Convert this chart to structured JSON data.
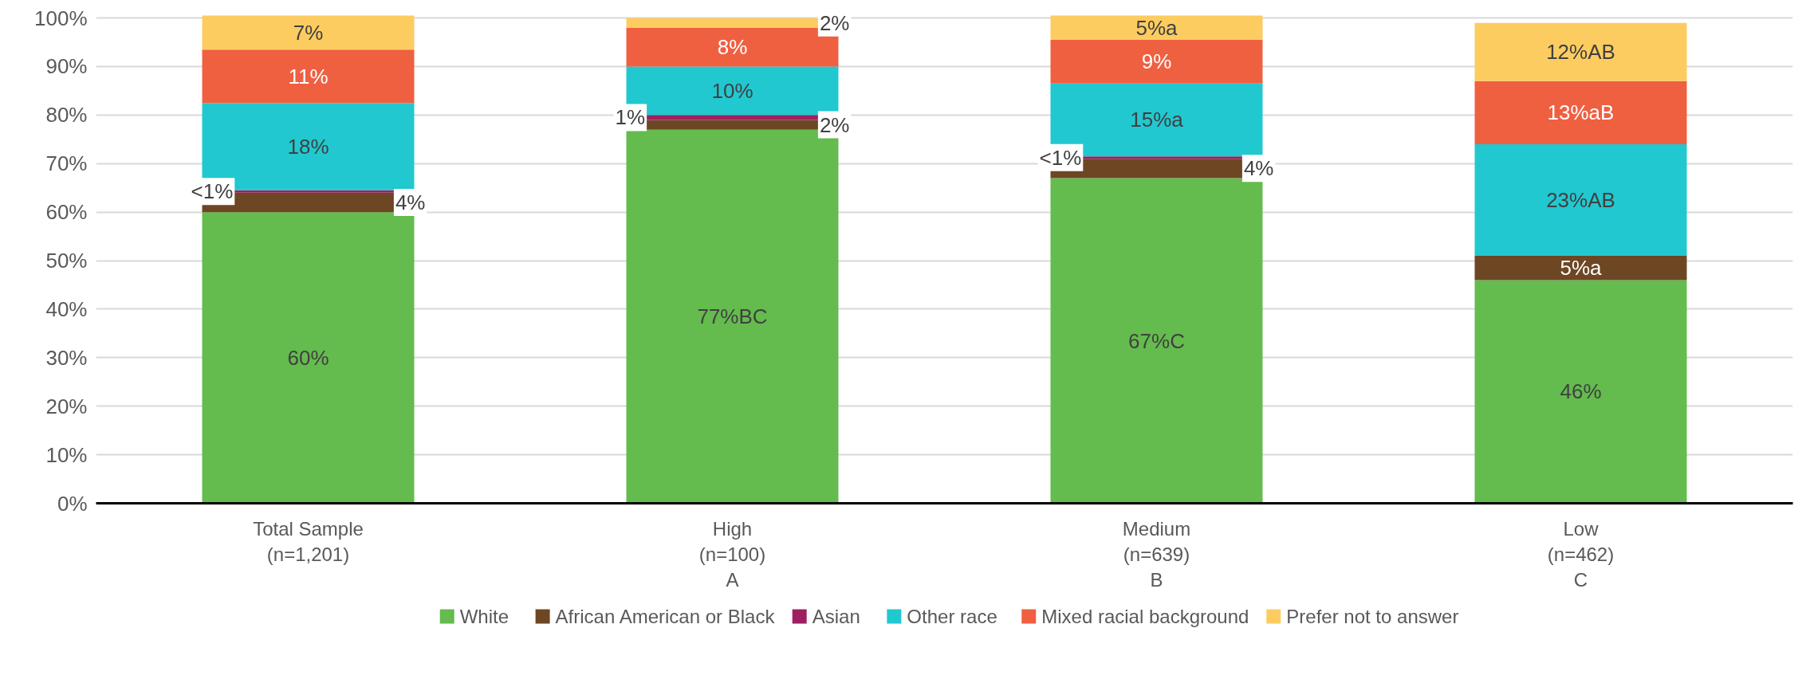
{
  "chart_data": {
    "type": "bar",
    "stacked": true,
    "categories": [
      "Total Sample\n(n=1,201)",
      "High\n(n=100)\nA",
      "Medium\n(n=639)\nB",
      "Low\n(n=462)\nC"
    ],
    "ylim": [
      0,
      101
    ],
    "yticks": [
      {
        "value": 0,
        "label": "0%"
      },
      {
        "value": 10,
        "label": "10%"
      },
      {
        "value": 20,
        "label": "20%"
      },
      {
        "value": 30,
        "label": "30%"
      },
      {
        "value": 40,
        "label": "40%"
      },
      {
        "value": 50,
        "label": "50%"
      },
      {
        "value": 60,
        "label": "60%"
      },
      {
        "value": 70,
        "label": "70%"
      },
      {
        "value": 80,
        "label": "80%"
      },
      {
        "value": 90,
        "label": "90%"
      },
      {
        "value": 100,
        "label": "100%"
      }
    ],
    "grid": "y",
    "legend": "bottom",
    "series": [
      {
        "name": "White",
        "color": "#64bb4e",
        "values": [
          60,
          77,
          67,
          46
        ],
        "value_labels": [
          "60%",
          "77%BC",
          "67%C",
          "46%"
        ]
      },
      {
        "name": "African American or Black",
        "color": "#6d4623",
        "values": [
          4,
          2,
          4,
          5
        ],
        "value_labels": [
          "4%",
          "2%",
          "4%",
          "5%a"
        ]
      },
      {
        "name": "Asian",
        "color": "#9e2060",
        "values": [
          0.5,
          1,
          0.5,
          null
        ],
        "value_labels": [
          "<1%",
          "1%",
          "<1%",
          null
        ]
      },
      {
        "name": "Other race",
        "color": "#21c8d0",
        "values": [
          18,
          10,
          15,
          23
        ],
        "value_labels": [
          "18%",
          "10%",
          "15%a",
          "23%AB"
        ]
      },
      {
        "name": "Mixed racial background",
        "color": "#ef6041",
        "values": [
          11,
          8,
          9,
          13
        ],
        "value_labels": [
          "11%",
          "8%",
          "9%",
          "13%aB"
        ]
      },
      {
        "name": "Prefer not to answer",
        "color": "#fdcc60",
        "values": [
          7,
          2,
          5,
          12
        ],
        "value_labels": [
          "7%",
          "2%",
          "5%a",
          "12%AB"
        ]
      }
    ]
  }
}
